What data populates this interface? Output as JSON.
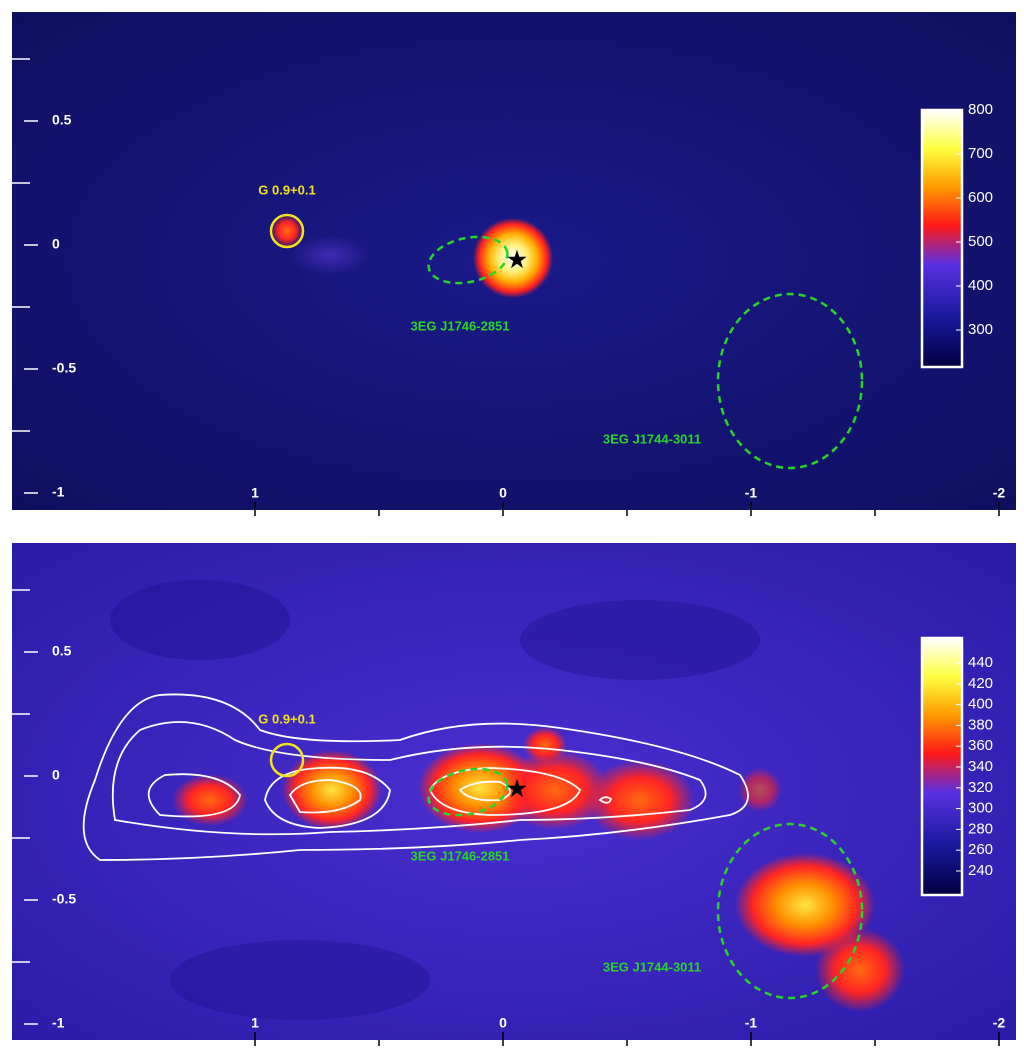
{
  "panels": [
    {
      "x_ticks": [
        1,
        0,
        -1,
        -2
      ],
      "y_ticks": [
        0.5,
        0,
        -0.5,
        -1
      ],
      "colorbar_ticks": [
        800,
        700,
        600,
        500,
        400,
        300
      ],
      "annotations": [
        "G 0.9+0.1",
        "3EG J1746-2851",
        "3EG J1744-3011"
      ]
    },
    {
      "x_ticks": [
        1,
        0,
        -1,
        -2
      ],
      "y_ticks": [
        0.5,
        0,
        -0.5,
        -1
      ],
      "colorbar_ticks": [
        440,
        420,
        400,
        380,
        360,
        340,
        320,
        300,
        280,
        260,
        240
      ],
      "annotations": [
        "G 0.9+0.1",
        "3EG J1746-2851",
        "3EG J1744-3011"
      ]
    }
  ]
}
